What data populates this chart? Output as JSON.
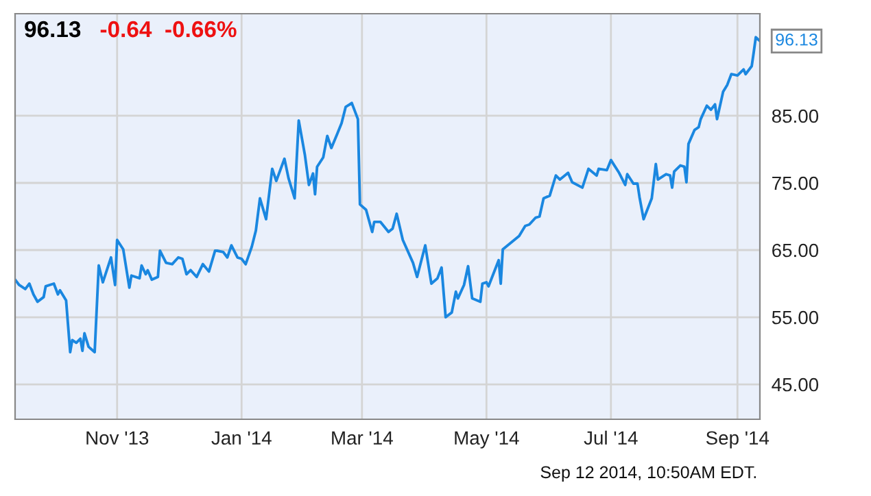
{
  "chart_data": {
    "type": "line",
    "title": "96.13",
    "subtitle": "-0.64  -0.66%",
    "annotations": [
      {
        "text": "96.13",
        "x": "2014-09-12",
        "y": 96.13
      },
      "Sep 12 2014, 10:50AM EDT."
    ],
    "x": [
      "2013-09-12",
      "2013-09-14",
      "2013-09-17",
      "2013-09-19",
      "2013-09-21",
      "2013-09-23",
      "2013-09-26",
      "2013-09-27",
      "2013-10-01",
      "2013-10-03",
      "2013-10-04",
      "2013-10-07",
      "2013-10-09",
      "2013-10-10",
      "2013-10-12",
      "2013-10-14",
      "2013-10-15",
      "2013-10-16",
      "2013-10-18",
      "2013-10-21",
      "2013-10-23",
      "2013-10-25",
      "2013-10-29",
      "2013-10-31",
      "2013-11-01",
      "2013-11-04",
      "2013-11-07",
      "2013-11-08",
      "2013-11-12",
      "2013-11-13",
      "2013-11-15",
      "2013-11-16",
      "2013-11-18",
      "2013-11-21",
      "2013-11-22",
      "2013-11-25",
      "2013-11-28",
      "2013-12-01",
      "2013-12-03",
      "2013-12-05",
      "2013-12-07",
      "2013-12-10",
      "2013-12-13",
      "2013-12-16",
      "2013-12-19",
      "2013-12-20",
      "2013-12-23",
      "2013-12-25",
      "2013-12-27",
      "2013-12-30",
      "2014-01-01",
      "2014-01-03",
      "2014-01-06",
      "2014-01-08",
      "2014-01-10",
      "2014-01-13",
      "2014-01-16",
      "2014-01-18",
      "2014-01-22",
      "2014-01-24",
      "2014-01-27",
      "2014-01-29",
      "2014-02-01",
      "2014-02-03",
      "2014-02-05",
      "2014-02-06",
      "2014-02-07",
      "2014-02-10",
      "2014-02-12",
      "2014-02-14",
      "2014-02-17",
      "2014-02-19",
      "2014-02-21",
      "2014-02-24",
      "2014-02-27",
      "2014-02-28",
      "2014-03-03",
      "2014-03-06",
      "2014-03-07",
      "2014-03-10",
      "2014-03-14",
      "2014-03-16",
      "2014-03-18",
      "2014-03-21",
      "2014-03-26",
      "2014-03-28",
      "2014-04-01",
      "2014-04-04",
      "2014-04-07",
      "2014-04-09",
      "2014-04-11",
      "2014-04-14",
      "2014-04-16",
      "2014-04-17",
      "2014-04-20",
      "2014-04-22",
      "2014-04-24",
      "2014-04-28",
      "2014-04-29",
      "2014-05-01",
      "2014-05-02",
      "2014-05-07",
      "2014-05-08",
      "2014-05-09",
      "2014-05-13",
      "2014-05-17",
      "2014-05-20",
      "2014-05-22",
      "2014-05-25",
      "2014-05-27",
      "2014-05-29",
      "2014-06-01",
      "2014-06-04",
      "2014-06-06",
      "2014-06-10",
      "2014-06-12",
      "2014-06-17",
      "2014-06-20",
      "2014-06-24",
      "2014-06-25",
      "2014-06-29",
      "2014-07-01",
      "2014-07-05",
      "2014-07-08",
      "2014-07-09",
      "2014-07-12",
      "2014-07-14",
      "2014-07-15",
      "2014-07-17",
      "2014-07-21",
      "2014-07-23",
      "2014-07-24",
      "2014-07-28",
      "2014-07-30",
      "2014-07-31",
      "2014-08-01",
      "2014-08-04",
      "2014-08-06",
      "2014-08-07",
      "2014-08-08",
      "2014-08-11",
      "2014-08-13",
      "2014-08-14",
      "2014-08-17",
      "2014-08-19",
      "2014-08-21",
      "2014-08-22",
      "2014-08-25",
      "2014-08-27",
      "2014-08-29",
      "2014-09-01",
      "2014-09-04",
      "2014-09-05",
      "2014-09-08",
      "2014-09-09",
      "2014-09-10",
      "2014-09-12"
    ],
    "series": [
      {
        "color": "#1a87e0",
        "values": [
          60.6,
          59.8,
          59.2,
          60.0,
          58.4,
          57.3,
          58.0,
          59.6,
          60.0,
          58.4,
          59.0,
          57.5,
          49.8,
          51.6,
          51.2,
          51.8,
          50.0,
          52.6,
          50.6,
          49.8,
          62.7,
          60.2,
          63.9,
          59.8,
          66.5,
          65.1,
          59.4,
          61.2,
          60.8,
          62.7,
          61.4,
          62.0,
          60.6,
          61.0,
          64.9,
          63.1,
          62.9,
          63.9,
          63.7,
          61.4,
          62.0,
          61.0,
          62.9,
          61.8,
          64.9,
          64.9,
          64.7,
          63.9,
          65.7,
          63.9,
          63.7,
          62.9,
          65.5,
          67.9,
          72.7,
          69.6,
          77.1,
          75.3,
          78.6,
          75.7,
          72.7,
          84.3,
          79.2,
          74.7,
          76.4,
          73.3,
          77.4,
          78.8,
          82.0,
          80.2,
          82.4,
          83.9,
          86.3,
          86.9,
          84.5,
          71.8,
          71.0,
          67.7,
          69.2,
          69.2,
          67.7,
          68.2,
          70.4,
          66.5,
          63.1,
          61.0,
          65.7,
          60.0,
          60.8,
          62.4,
          55.0,
          55.7,
          58.8,
          57.8,
          59.8,
          62.6,
          57.8,
          57.3,
          60.0,
          60.2,
          59.6,
          63.5,
          60.0,
          65.1,
          66.1,
          67.1,
          68.6,
          68.8,
          69.8,
          70.0,
          72.7,
          73.1,
          76.1,
          75.5,
          76.5,
          75.1,
          74.3,
          77.1,
          76.1,
          77.1,
          76.9,
          78.4,
          76.5,
          74.7,
          76.3,
          74.9,
          74.9,
          72.9,
          69.6,
          72.7,
          77.8,
          75.5,
          76.3,
          76.1,
          74.3,
          76.7,
          77.6,
          77.4,
          75.1,
          80.8,
          82.9,
          83.3,
          84.5,
          86.5,
          85.9,
          86.7,
          84.5,
          88.6,
          89.6,
          91.2,
          91.0,
          91.9,
          91.2,
          92.4,
          94.5,
          96.7,
          96.13
        ]
      }
    ],
    "xlim": [
      "2013-09-12",
      "2014-09-12"
    ],
    "xticks": [
      {
        "value": "2013-11-01",
        "label": "Nov '13"
      },
      {
        "value": "2014-01-01",
        "label": "Jan '14"
      },
      {
        "value": "2014-03-01",
        "label": "Mar '14"
      },
      {
        "value": "2014-05-01",
        "label": "May '14"
      },
      {
        "value": "2014-07-01",
        "label": "Jul '14"
      },
      {
        "value": "2014-09-01",
        "label": "Sep '14"
      }
    ],
    "ylim": [
      39.8,
      100.2
    ],
    "yticks": [
      {
        "value": 45,
        "label": "45.00"
      },
      {
        "value": 55,
        "label": "55.00"
      },
      {
        "value": 65,
        "label": "65.00"
      },
      {
        "value": 75,
        "label": "75.00"
      },
      {
        "value": 85,
        "label": "85.00"
      }
    ],
    "grid": true,
    "legend": false
  }
}
